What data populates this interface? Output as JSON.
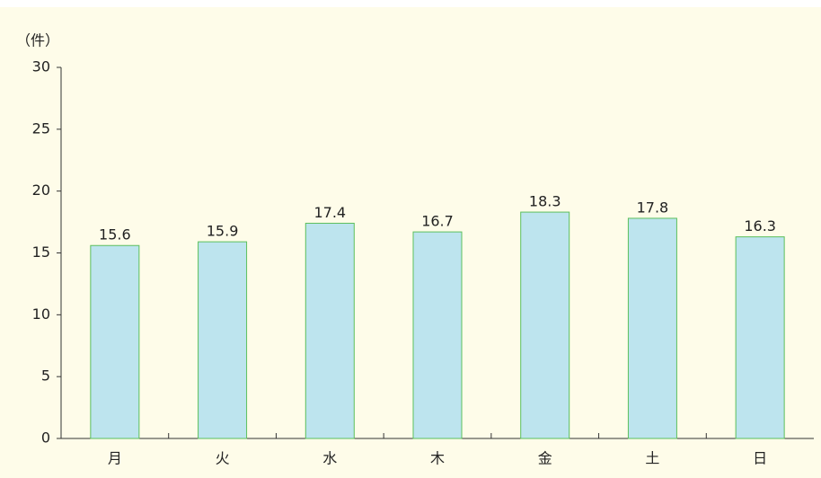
{
  "chart_data": {
    "type": "bar",
    "y_label": "（件）",
    "categories": [
      "月",
      "火",
      "水",
      "木",
      "金",
      "土",
      "日"
    ],
    "values": [
      15.6,
      15.9,
      17.4,
      16.7,
      18.3,
      17.8,
      16.3
    ],
    "color": "#bde4ee",
    "edge_color": "#5cbf5c",
    "ylim": [
      0,
      30
    ],
    "yticks": [
      0,
      5,
      10,
      15,
      20,
      25,
      30
    ],
    "grid": false
  }
}
